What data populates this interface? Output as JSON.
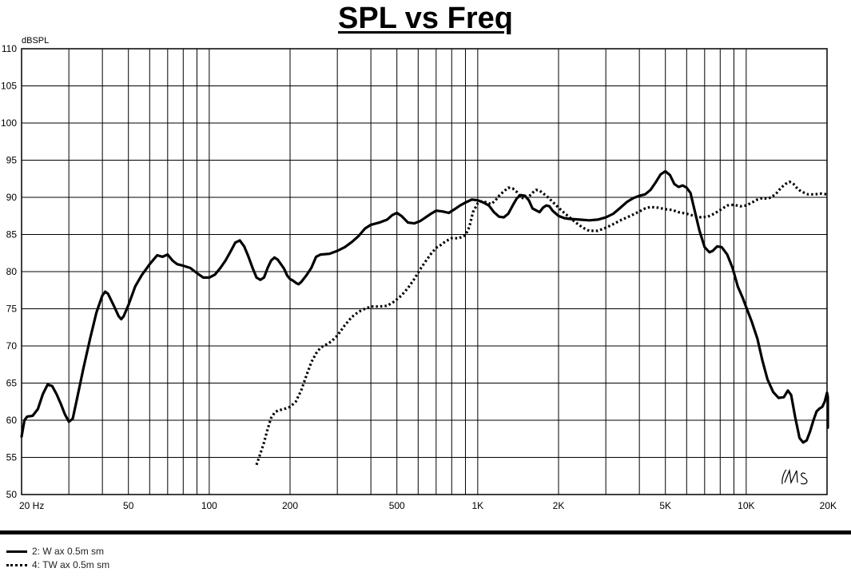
{
  "chart_data": {
    "type": "line",
    "title": "SPL vs Freq",
    "ylabel": "dBSPL",
    "xlabel": "",
    "x_scale": "log",
    "xlim": [
      20,
      20000
    ],
    "ylim": [
      50,
      110
    ],
    "grid": true,
    "x_ticks": [
      {
        "value": 20,
        "label": "20  Hz"
      },
      {
        "value": 50,
        "label": "50"
      },
      {
        "value": 100,
        "label": "100"
      },
      {
        "value": 200,
        "label": "200"
      },
      {
        "value": 500,
        "label": "500"
      },
      {
        "value": 1000,
        "label": "1K"
      },
      {
        "value": 2000,
        "label": "2K"
      },
      {
        "value": 5000,
        "label": "5K"
      },
      {
        "value": 10000,
        "label": "10K"
      },
      {
        "value": 20000,
        "label": "20K"
      }
    ],
    "y_ticks": [
      110,
      105,
      100,
      95,
      90,
      85,
      80,
      75,
      70,
      65,
      60,
      55,
      50
    ],
    "watermark": "LMS",
    "series": [
      {
        "name": "2: W ax 0.5m sm",
        "style": "solid",
        "color": "#000000",
        "points": [
          [
            20,
            57.8
          ],
          [
            20.5,
            60
          ],
          [
            21,
            60.5
          ],
          [
            22,
            60.6
          ],
          [
            23,
            61.5
          ],
          [
            24,
            63.5
          ],
          [
            25,
            64.8
          ],
          [
            26,
            64.6
          ],
          [
            27,
            63.5
          ],
          [
            28,
            62.2
          ],
          [
            29,
            60.8
          ],
          [
            30,
            59.8
          ],
          [
            31,
            60.2
          ],
          [
            32,
            62.5
          ],
          [
            34,
            67
          ],
          [
            36,
            71
          ],
          [
            38,
            74.5
          ],
          [
            40,
            76.8
          ],
          [
            41,
            77.3
          ],
          [
            42,
            77
          ],
          [
            44,
            75.5
          ],
          [
            46,
            74
          ],
          [
            47,
            73.6
          ],
          [
            48,
            74
          ],
          [
            50,
            75.5
          ],
          [
            53,
            78
          ],
          [
            56,
            79.5
          ],
          [
            60,
            81
          ],
          [
            64,
            82.2
          ],
          [
            67,
            82
          ],
          [
            70,
            82.3
          ],
          [
            73,
            81.5
          ],
          [
            76,
            81
          ],
          [
            80,
            80.8
          ],
          [
            85,
            80.5
          ],
          [
            90,
            79.8
          ],
          [
            95,
            79.2
          ],
          [
            100,
            79.2
          ],
          [
            105,
            79.6
          ],
          [
            110,
            80.5
          ],
          [
            115,
            81.5
          ],
          [
            120,
            82.7
          ],
          [
            125,
            83.9
          ],
          [
            130,
            84.2
          ],
          [
            135,
            83.4
          ],
          [
            140,
            82
          ],
          [
            145,
            80.5
          ],
          [
            150,
            79.2
          ],
          [
            155,
            78.9
          ],
          [
            160,
            79.2
          ],
          [
            165,
            80.5
          ],
          [
            170,
            81.5
          ],
          [
            175,
            81.9
          ],
          [
            180,
            81.6
          ],
          [
            185,
            81
          ],
          [
            190,
            80.4
          ],
          [
            195,
            79.5
          ],
          [
            200,
            79
          ],
          [
            205,
            78.8
          ],
          [
            210,
            78.5
          ],
          [
            215,
            78.3
          ],
          [
            220,
            78.6
          ],
          [
            230,
            79.5
          ],
          [
            240,
            80.5
          ],
          [
            250,
            82
          ],
          [
            260,
            82.3
          ],
          [
            280,
            82.4
          ],
          [
            300,
            82.8
          ],
          [
            320,
            83.3
          ],
          [
            340,
            84
          ],
          [
            360,
            84.8
          ],
          [
            380,
            85.8
          ],
          [
            400,
            86.3
          ],
          [
            430,
            86.6
          ],
          [
            460,
            87
          ],
          [
            480,
            87.6
          ],
          [
            500,
            87.9
          ],
          [
            520,
            87.5
          ],
          [
            550,
            86.6
          ],
          [
            580,
            86.5
          ],
          [
            610,
            86.8
          ],
          [
            640,
            87.3
          ],
          [
            670,
            87.8
          ],
          [
            700,
            88.2
          ],
          [
            740,
            88.1
          ],
          [
            780,
            87.9
          ],
          [
            820,
            88.4
          ],
          [
            860,
            88.9
          ],
          [
            900,
            89.3
          ],
          [
            950,
            89.7
          ],
          [
            1000,
            89.6
          ],
          [
            1050,
            89.3
          ],
          [
            1100,
            88.9
          ],
          [
            1150,
            88
          ],
          [
            1200,
            87.4
          ],
          [
            1250,
            87.3
          ],
          [
            1300,
            87.8
          ],
          [
            1350,
            88.9
          ],
          [
            1400,
            89.9
          ],
          [
            1450,
            90.3
          ],
          [
            1500,
            90.2
          ],
          [
            1550,
            89.6
          ],
          [
            1600,
            88.5
          ],
          [
            1700,
            88
          ],
          [
            1750,
            88.6
          ],
          [
            1800,
            88.9
          ],
          [
            1850,
            88.8
          ],
          [
            1900,
            88.2
          ],
          [
            2000,
            87.5
          ],
          [
            2100,
            87.2
          ],
          [
            2200,
            87.1
          ],
          [
            2400,
            87
          ],
          [
            2600,
            86.9
          ],
          [
            2800,
            87
          ],
          [
            3000,
            87.3
          ],
          [
            3200,
            87.8
          ],
          [
            3400,
            88.6
          ],
          [
            3600,
            89.4
          ],
          [
            3800,
            89.9
          ],
          [
            4000,
            90.2
          ],
          [
            4200,
            90.4
          ],
          [
            4400,
            91
          ],
          [
            4600,
            92
          ],
          [
            4800,
            93.1
          ],
          [
            5000,
            93.5
          ],
          [
            5200,
            93
          ],
          [
            5400,
            91.8
          ],
          [
            5600,
            91.4
          ],
          [
            5800,
            91.6
          ],
          [
            6000,
            91.3
          ],
          [
            6200,
            90.6
          ],
          [
            6400,
            88.5
          ],
          [
            6700,
            85.5
          ],
          [
            7000,
            83.3
          ],
          [
            7300,
            82.6
          ],
          [
            7500,
            82.8
          ],
          [
            7800,
            83.4
          ],
          [
            8100,
            83.3
          ],
          [
            8500,
            82.3
          ],
          [
            8900,
            80.5
          ],
          [
            9300,
            78
          ],
          [
            9700,
            76.5
          ],
          [
            10000,
            75.2
          ],
          [
            10500,
            73.2
          ],
          [
            11000,
            71
          ],
          [
            11500,
            68
          ],
          [
            12000,
            65.5
          ],
          [
            12600,
            63.8
          ],
          [
            13200,
            63
          ],
          [
            13800,
            63.1
          ],
          [
            14300,
            64
          ],
          [
            14700,
            63.4
          ],
          [
            15200,
            60.5
          ],
          [
            15800,
            57.6
          ],
          [
            16300,
            57
          ],
          [
            16800,
            57.3
          ],
          [
            17300,
            58.5
          ],
          [
            17800,
            60
          ],
          [
            18300,
            61.2
          ],
          [
            18800,
            61.6
          ],
          [
            19200,
            61.8
          ],
          [
            19600,
            62.5
          ],
          [
            20000,
            63.7
          ],
          [
            20300,
            63.1
          ],
          [
            20500,
            59
          ]
        ]
      },
      {
        "name": "4: TW ax 0.5m sm",
        "style": "dotted",
        "color": "#000000",
        "points": [
          [
            150,
            54
          ],
          [
            155,
            55.5
          ],
          [
            160,
            57
          ],
          [
            165,
            58.8
          ],
          [
            170,
            60.3
          ],
          [
            175,
            61
          ],
          [
            180,
            61.3
          ],
          [
            190,
            61.5
          ],
          [
            200,
            61.8
          ],
          [
            210,
            62.5
          ],
          [
            220,
            64
          ],
          [
            230,
            66
          ],
          [
            240,
            67.8
          ],
          [
            250,
            69
          ],
          [
            260,
            69.8
          ],
          [
            270,
            70.1
          ],
          [
            285,
            70.6
          ],
          [
            300,
            71.4
          ],
          [
            320,
            72.8
          ],
          [
            340,
            73.9
          ],
          [
            360,
            74.6
          ],
          [
            380,
            75
          ],
          [
            400,
            75.3
          ],
          [
            430,
            75.3
          ],
          [
            460,
            75.4
          ],
          [
            490,
            76
          ],
          [
            520,
            76.8
          ],
          [
            550,
            77.8
          ],
          [
            580,
            79
          ],
          [
            610,
            80.3
          ],
          [
            640,
            81.4
          ],
          [
            670,
            82.4
          ],
          [
            700,
            83.2
          ],
          [
            730,
            83.6
          ],
          [
            760,
            84.1
          ],
          [
            800,
            84.5
          ],
          [
            850,
            84.5
          ],
          [
            900,
            84.9
          ],
          [
            930,
            86
          ],
          [
            960,
            88
          ],
          [
            1000,
            89.2
          ],
          [
            1040,
            89.5
          ],
          [
            1080,
            89.3
          ],
          [
            1120,
            89.1
          ],
          [
            1160,
            89.5
          ],
          [
            1200,
            90.2
          ],
          [
            1250,
            90.8
          ],
          [
            1300,
            91.3
          ],
          [
            1350,
            91.2
          ],
          [
            1400,
            90.7
          ],
          [
            1450,
            90
          ],
          [
            1500,
            89.8
          ],
          [
            1550,
            90.1
          ],
          [
            1600,
            90.6
          ],
          [
            1650,
            91
          ],
          [
            1700,
            90.9
          ],
          [
            1800,
            90.2
          ],
          [
            1900,
            89.4
          ],
          [
            2000,
            88.6
          ],
          [
            2100,
            87.9
          ],
          [
            2200,
            87.3
          ],
          [
            2300,
            86.7
          ],
          [
            2400,
            86.2
          ],
          [
            2500,
            85.8
          ],
          [
            2600,
            85.5
          ],
          [
            2800,
            85.5
          ],
          [
            3000,
            85.9
          ],
          [
            3200,
            86.4
          ],
          [
            3400,
            86.9
          ],
          [
            3600,
            87.3
          ],
          [
            3800,
            87.7
          ],
          [
            4000,
            88.1
          ],
          [
            4200,
            88.5
          ],
          [
            4400,
            88.7
          ],
          [
            4700,
            88.6
          ],
          [
            5000,
            88.4
          ],
          [
            5300,
            88.3
          ],
          [
            5600,
            88
          ],
          [
            6000,
            87.8
          ],
          [
            6400,
            87.5
          ],
          [
            6800,
            87.3
          ],
          [
            7200,
            87.4
          ],
          [
            7600,
            87.8
          ],
          [
            8000,
            88.3
          ],
          [
            8500,
            88.9
          ],
          [
            9000,
            89
          ],
          [
            9500,
            88.8
          ],
          [
            10000,
            88.9
          ],
          [
            10500,
            89.3
          ],
          [
            11000,
            89.7
          ],
          [
            11500,
            89.9
          ],
          [
            12000,
            89.8
          ],
          [
            12500,
            90.1
          ],
          [
            13000,
            90.6
          ],
          [
            13500,
            91.3
          ],
          [
            14000,
            91.8
          ],
          [
            14500,
            92.1
          ],
          [
            15000,
            91.8
          ],
          [
            15500,
            91.2
          ],
          [
            16000,
            90.8
          ],
          [
            17000,
            90.4
          ],
          [
            18000,
            90.4
          ],
          [
            19000,
            90.5
          ],
          [
            20000,
            90.4
          ],
          [
            20500,
            90.5
          ]
        ]
      }
    ]
  },
  "legend": [
    {
      "label": "2: W ax 0.5m sm",
      "style": "solid"
    },
    {
      "label": "4: TW ax 0.5m sm",
      "style": "dotted"
    }
  ]
}
